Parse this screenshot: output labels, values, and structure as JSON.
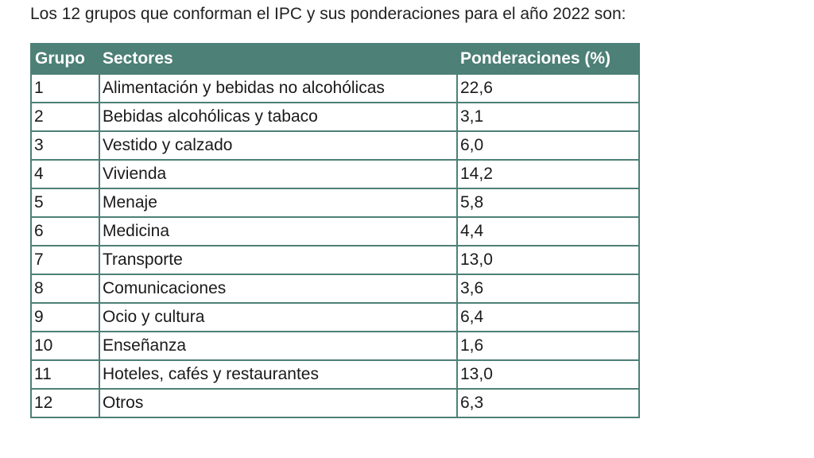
{
  "intro": "Los 12 grupos que conforman el IPC y sus ponderaciones para el año 2022 son:",
  "colors": {
    "header_bg": "#4d8077",
    "header_text": "#ffffff",
    "border": "#4d8077"
  },
  "table": {
    "headers": [
      "Grupo",
      "Sectores",
      "Ponderaciones (%)"
    ],
    "rows": [
      [
        "1",
        "Alimentación y bebidas no alcohólicas",
        "22,6"
      ],
      [
        "2",
        "Bebidas alcohólicas y tabaco",
        "3,1"
      ],
      [
        "3",
        "Vestido y calzado",
        "6,0"
      ],
      [
        "4",
        "Vivienda",
        "14,2"
      ],
      [
        "5",
        "Menaje",
        "5,8"
      ],
      [
        "6",
        "Medicina",
        "4,4"
      ],
      [
        "7",
        "Transporte",
        "13,0"
      ],
      [
        "8",
        "Comunicaciones",
        "3,6"
      ],
      [
        "9",
        "Ocio y cultura",
        "6,4"
      ],
      [
        "10",
        "Enseñanza",
        "1,6"
      ],
      [
        "11",
        "Hoteles, cafés y restaurantes",
        "13,0"
      ],
      [
        "12",
        "Otros",
        "6,3"
      ]
    ]
  }
}
